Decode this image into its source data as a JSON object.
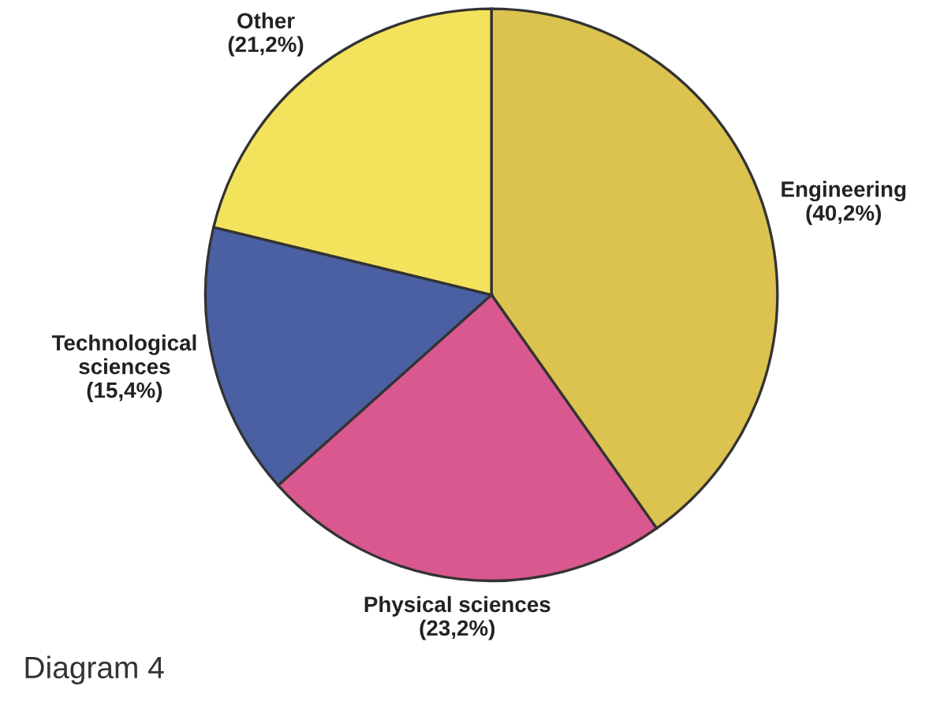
{
  "chart_data": {
    "type": "pie",
    "title": "Diagram 4",
    "categories": [
      "Engineering",
      "Physical sciences",
      "Technological\nsciences",
      "Other"
    ],
    "values": [
      40.2,
      23.2,
      15.4,
      21.2
    ],
    "value_labels": [
      "(40,2%)",
      "(23,2%)",
      "(15,4%)",
      "(21,2%)"
    ],
    "colors": [
      "#dcc24e",
      "#d9588f",
      "#4b60a3",
      "#f3e35c"
    ],
    "legend": false
  }
}
